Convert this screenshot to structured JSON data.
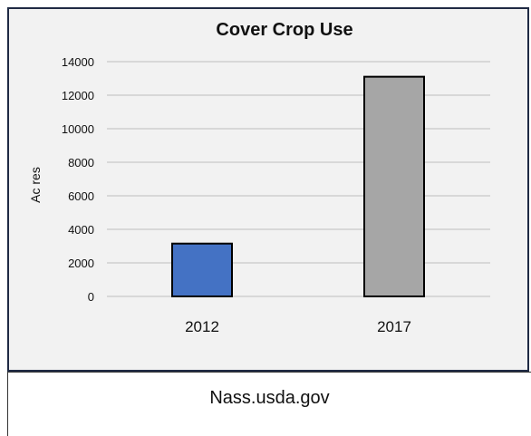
{
  "chart_data": {
    "type": "bar",
    "title": "Cover Crop Use",
    "ylabel": "Ac res",
    "xlabel": "",
    "categories": [
      "2012",
      "2017"
    ],
    "values": [
      3150,
      13100
    ],
    "ylim": [
      0,
      14000
    ],
    "yticks": [
      0,
      2000,
      4000,
      6000,
      8000,
      10000,
      12000,
      14000
    ],
    "bar_colors": [
      "#4472c4",
      "#a6a6a6"
    ],
    "grid": true,
    "legend": "none"
  },
  "caption": {
    "text": "Nass.usda.gov"
  }
}
